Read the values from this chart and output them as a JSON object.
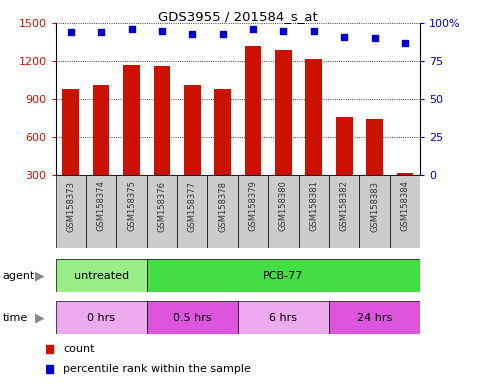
{
  "title": "GDS3955 / 201584_s_at",
  "samples": [
    "GSM158373",
    "GSM158374",
    "GSM158375",
    "GSM158376",
    "GSM158377",
    "GSM158378",
    "GSM158379",
    "GSM158380",
    "GSM158381",
    "GSM158382",
    "GSM158383",
    "GSM158384"
  ],
  "counts": [
    980,
    1010,
    1165,
    1160,
    1010,
    980,
    1320,
    1290,
    1215,
    760,
    740,
    310
  ],
  "percentile_ranks": [
    94,
    94,
    96,
    95,
    93,
    93,
    96,
    95,
    95,
    91,
    90,
    87
  ],
  "ylim_left": [
    300,
    1500
  ],
  "ylim_right": [
    0,
    100
  ],
  "yticks_left": [
    300,
    600,
    900,
    1200,
    1500
  ],
  "yticks_right": [
    0,
    25,
    50,
    75,
    100
  ],
  "bar_color": "#cc1100",
  "dot_color": "#0000cc",
  "bar_bottom": 300,
  "agent_groups": [
    {
      "label": "untreated",
      "start": 0,
      "end": 3,
      "color": "#99ee88"
    },
    {
      "label": "PCB-77",
      "start": 3,
      "end": 12,
      "color": "#44dd44"
    }
  ],
  "time_groups": [
    {
      "label": "0 hrs",
      "start": 0,
      "end": 3,
      "color": "#eeaaee"
    },
    {
      "label": "0.5 hrs",
      "start": 3,
      "end": 6,
      "color": "#dd55dd"
    },
    {
      "label": "6 hrs",
      "start": 6,
      "end": 9,
      "color": "#eeaaee"
    },
    {
      "label": "24 hrs",
      "start": 9,
      "end": 12,
      "color": "#dd55dd"
    }
  ],
  "sample_box_color": "#cccccc",
  "legend_count_color": "#cc1100",
  "legend_dot_color": "#0000cc",
  "tick_label_color_left": "#cc1100",
  "tick_label_color_right": "#0000cc"
}
